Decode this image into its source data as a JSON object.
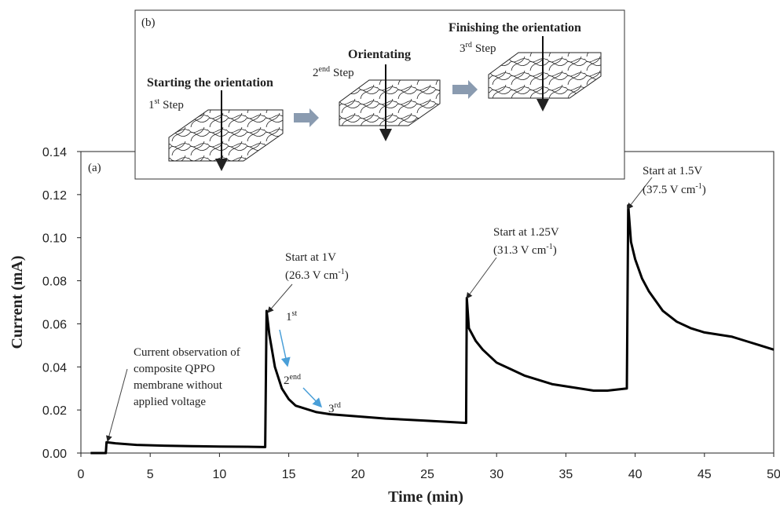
{
  "chart_data": {
    "type": "line",
    "xlabel": "Time (min)",
    "ylabel": "Current (mA)",
    "panel_label": "(a)",
    "xlim": [
      0,
      50
    ],
    "xticks": [
      0,
      5,
      10,
      15,
      20,
      25,
      30,
      35,
      40,
      45,
      50
    ],
    "ylim": [
      0,
      0.14
    ],
    "yticks": [
      {
        "value": 0,
        "label": "0.00"
      },
      {
        "value": 0.02,
        "label": "0.02"
      },
      {
        "value": 0.04,
        "label": "0.04"
      },
      {
        "value": 0.06,
        "label": "0.06"
      },
      {
        "value": 0.08,
        "label": "0.08"
      },
      {
        "value": 0.1,
        "label": "0.10"
      },
      {
        "value": 0.12,
        "label": "0.12"
      },
      {
        "value": 0.14,
        "label": "0.14"
      }
    ],
    "x": [
      0.7,
      1.0,
      1.5,
      1.8,
      1.85,
      2.5,
      4,
      6,
      8,
      10,
      12,
      13.3,
      13.4,
      13.6,
      14,
      14.5,
      15,
      15.5,
      16,
      17,
      18,
      20,
      22,
      25,
      27.8,
      27.85,
      28,
      28.5,
      29,
      30,
      31,
      32,
      34,
      36,
      37,
      38,
      39.4,
      39.5,
      39.7,
      40,
      40.5,
      41,
      42,
      43,
      44,
      45,
      46,
      47,
      48,
      49,
      50
    ],
    "series": [
      {
        "color": "#000000",
        "values": [
          0,
          0,
          0,
          0,
          0.005,
          0.0045,
          0.0038,
          0.0034,
          0.0032,
          0.003,
          0.0029,
          0.0028,
          0.066,
          0.055,
          0.04,
          0.03,
          0.025,
          0.022,
          0.021,
          0.019,
          0.018,
          0.017,
          0.016,
          0.015,
          0.014,
          0.072,
          0.058,
          0.052,
          0.048,
          0.042,
          0.039,
          0.036,
          0.032,
          0.03,
          0.029,
          0.029,
          0.03,
          0.115,
          0.098,
          0.09,
          0.081,
          0.075,
          0.066,
          0.061,
          0.058,
          0.056,
          0.055,
          0.054,
          0.052,
          0.05,
          0.048
        ]
      }
    ],
    "annotations": [
      {
        "lines": [
          "Current observation of",
          "composite QPPO",
          "membrane without",
          "applied voltage"
        ]
      },
      {
        "lines": [
          "Start at 1V",
          [
            "(26.3 V cm",
            "-1",
            ")"
          ]
        ]
      },
      {
        "lines": [
          "Start at 1.25V",
          [
            "(31.3 V cm",
            "-1",
            ")"
          ]
        ]
      },
      {
        "lines": [
          "Start at 1.5V",
          [
            "(37.5 V cm",
            "-1",
            ")"
          ]
        ]
      },
      {
        "lines": [
          [
            "1",
            "st"
          ]
        ]
      },
      {
        "lines": [
          [
            "2",
            "end"
          ]
        ]
      },
      {
        "lines": [
          [
            "3",
            "rd"
          ]
        ]
      }
    ]
  },
  "inset": {
    "label": "(b)",
    "steps": [
      {
        "title": "Starting the orientation",
        "number": "1",
        "suffix": "st",
        "word": "Step"
      },
      {
        "title": "Orientating",
        "number": "2",
        "suffix": "end",
        "word": "Step"
      },
      {
        "title": "Finishing the orientation",
        "number": "3",
        "suffix": "rd",
        "word": "Step"
      }
    ]
  }
}
